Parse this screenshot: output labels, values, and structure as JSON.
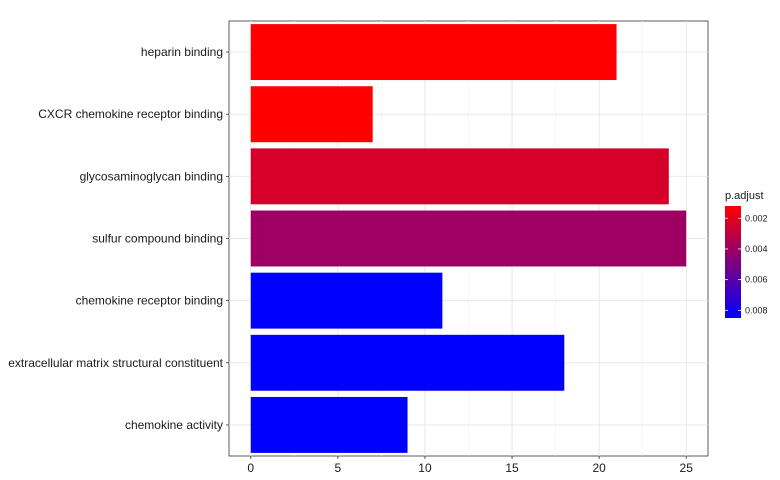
{
  "chart_data": {
    "type": "bar",
    "orientation": "horizontal",
    "categories": [
      "heparin binding",
      "CXCR chemokine receptor binding",
      "glycosaminoglycan binding",
      "sulfur compound binding",
      "chemokine receptor binding",
      "extracellular matrix structural constituent",
      "chemokine activity"
    ],
    "values": [
      21,
      7,
      24,
      25,
      11,
      18,
      9
    ],
    "p_adjust": [
      0.0012,
      0.0012,
      0.0024,
      0.004,
      0.0085,
      0.0085,
      0.0085
    ],
    "xlim": [
      -1.25,
      26.25
    ],
    "xticks": [
      0,
      5,
      10,
      15,
      20,
      25
    ],
    "grid": true,
    "legend": {
      "title": "p.adjust",
      "placement": "right",
      "range": [
        0.0012,
        0.0085
      ],
      "ticks": [
        {
          "value": 0.002,
          "label": "0.002"
        },
        {
          "value": 0.004,
          "label": "0.004"
        },
        {
          "value": 0.006,
          "label": "0.006"
        },
        {
          "value": 0.008,
          "label": "0.008"
        }
      ],
      "color_low": "#ff0000",
      "color_high": "#0000ff"
    }
  }
}
